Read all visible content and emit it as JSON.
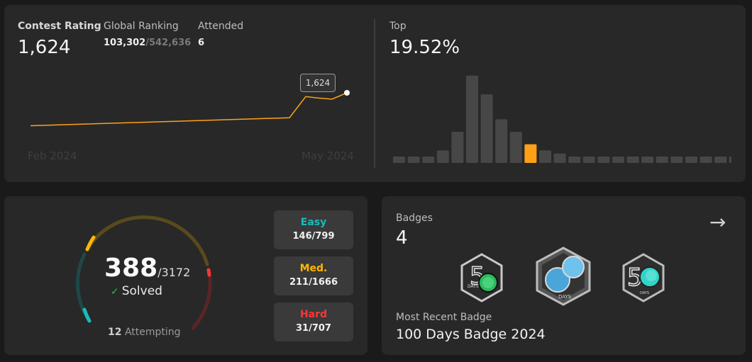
{
  "contest": {
    "rating_label": "Contest Rating",
    "rating_value": "1,624",
    "ranking_label": "Global Ranking",
    "ranking_value": "103,302",
    "ranking_total": "/542,636",
    "attended_label": "Attended",
    "attended_value": "6",
    "tooltip": "1,624",
    "x_start": "Feb 2024",
    "x_end": "May 2024",
    "top_label": "Top",
    "top_value": "19.52%",
    "line_color": "#ffa116"
  },
  "chart_data": [
    {
      "type": "line",
      "title": "",
      "x": [
        1,
        2,
        3,
        4,
        5,
        6
      ],
      "values": [
        1500,
        1530,
        1610,
        1605,
        1600,
        1624
      ],
      "x_labels": [
        "Feb 2024",
        "May 2024"
      ],
      "highlight": "1,624"
    },
    {
      "type": "bar",
      "title": "",
      "values": [
        1,
        1,
        1,
        2,
        5,
        14,
        11,
        7,
        5,
        3,
        2,
        1.5,
        1,
        1,
        1,
        1,
        1,
        1,
        1,
        1,
        1,
        1,
        1,
        1
      ],
      "highlight_index": 9,
      "bar_color": "#474747",
      "highlight_color": "#ffa116"
    }
  ],
  "solved": {
    "count": "388",
    "total": "/3172",
    "label": "Solved",
    "attempting_count": "12",
    "attempting_label": "Attempting",
    "difficulties": [
      {
        "name": "Easy",
        "value": "146/799",
        "color": "#1cbaba",
        "solved": 146,
        "total": 799
      },
      {
        "name": "Med.",
        "value": "211/1666",
        "color": "#ffb700",
        "solved": 211,
        "total": 1666
      },
      {
        "name": "Hard",
        "value": "31/707",
        "color": "#f63737",
        "solved": 31,
        "total": 707
      }
    ]
  },
  "badges": {
    "label": "Badges",
    "count": "4",
    "recent_label": "Most Recent Badge",
    "recent_name": "100 Days Badge 2024",
    "items": [
      {
        "icon": "50-days-badge-icon",
        "text": "DAYS"
      },
      {
        "icon": "100-days-badge-icon",
        "text": "DAYS"
      },
      {
        "icon": "50-days-badge-icon",
        "text": "DAYS"
      }
    ]
  }
}
